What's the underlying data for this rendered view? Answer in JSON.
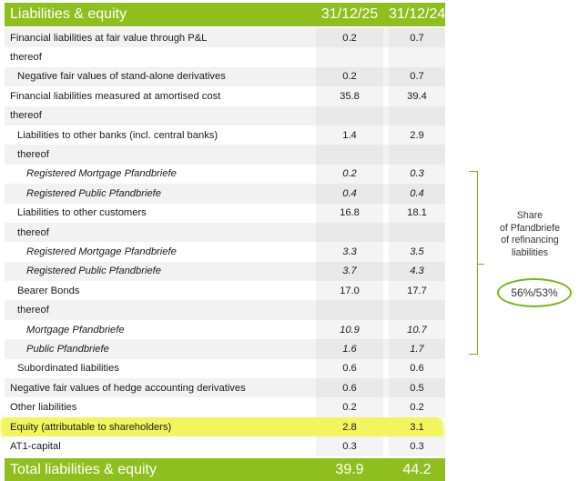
{
  "header": {
    "title": "Liabilities & equity",
    "col1": "31/12/25",
    "col2": "31/12/24"
  },
  "rows": [
    {
      "label": "Financial liabilities at fair value through P&L",
      "v1": "0.2",
      "v2": "0.7"
    },
    {
      "label": "thereof",
      "v1": "",
      "v2": ""
    },
    {
      "label": "Negative fair values of stand-alone derivatives",
      "v1": "0.2",
      "v2": "0.7"
    },
    {
      "label": "Financial liabilities measured at amortised cost",
      "v1": "35.8",
      "v2": "39.4"
    },
    {
      "label": "thereof",
      "v1": "",
      "v2": ""
    },
    {
      "label": "Liabilities to other banks (incl. central banks)",
      "v1": "1.4",
      "v2": "2.9"
    },
    {
      "label": "thereof",
      "v1": "",
      "v2": ""
    },
    {
      "label": "Registered Mortgage Pfandbriefe",
      "v1": "0.2",
      "v2": "0.3"
    },
    {
      "label": "Registered Public Pfandbriefe",
      "v1": "0.4",
      "v2": "0.4"
    },
    {
      "label": "Liabilities to other customers",
      "v1": "16.8",
      "v2": "18.1"
    },
    {
      "label": "thereof",
      "v1": "",
      "v2": ""
    },
    {
      "label": "Registered Mortgage Pfandbriefe",
      "v1": "3.3",
      "v2": "3.5"
    },
    {
      "label": "Registered Public Pfandbriefe",
      "v1": "3.7",
      "v2": "4.3"
    },
    {
      "label": "Bearer Bonds",
      "v1": "17.0",
      "v2": "17.7"
    },
    {
      "label": "thereof",
      "v1": "",
      "v2": ""
    },
    {
      "label": "Mortgage Pfandbriefe",
      "v1": "10.9",
      "v2": "10.7"
    },
    {
      "label": "Public Pfandbriefe",
      "v1": "1.6",
      "v2": "1.7"
    },
    {
      "label": "Subordinated liabilities",
      "v1": "0.6",
      "v2": "0.6"
    },
    {
      "label": "Negative fair values of hedge accounting derivatives",
      "v1": "0.6",
      "v2": "0.5"
    },
    {
      "label": "Other liabilities",
      "v1": "0.2",
      "v2": "0.2"
    },
    {
      "label": "Equity (attributable to shareholders)",
      "v1": "2.8",
      "v2": "3.1"
    },
    {
      "label": "AT1-capital",
      "v1": "0.3",
      "v2": "0.3"
    }
  ],
  "footer": {
    "label": "Total liabilities & equity",
    "v1": "39.9",
    "v2": "44.2"
  },
  "annotation": {
    "line1": "Share",
    "line2": "of Pfandbriefe",
    "line3": "of refinancing",
    "line4": "liabilities",
    "ratio": "56%/53%"
  },
  "colors": {
    "brand_green": "#8fbf1f",
    "highlight": "#eef228"
  }
}
